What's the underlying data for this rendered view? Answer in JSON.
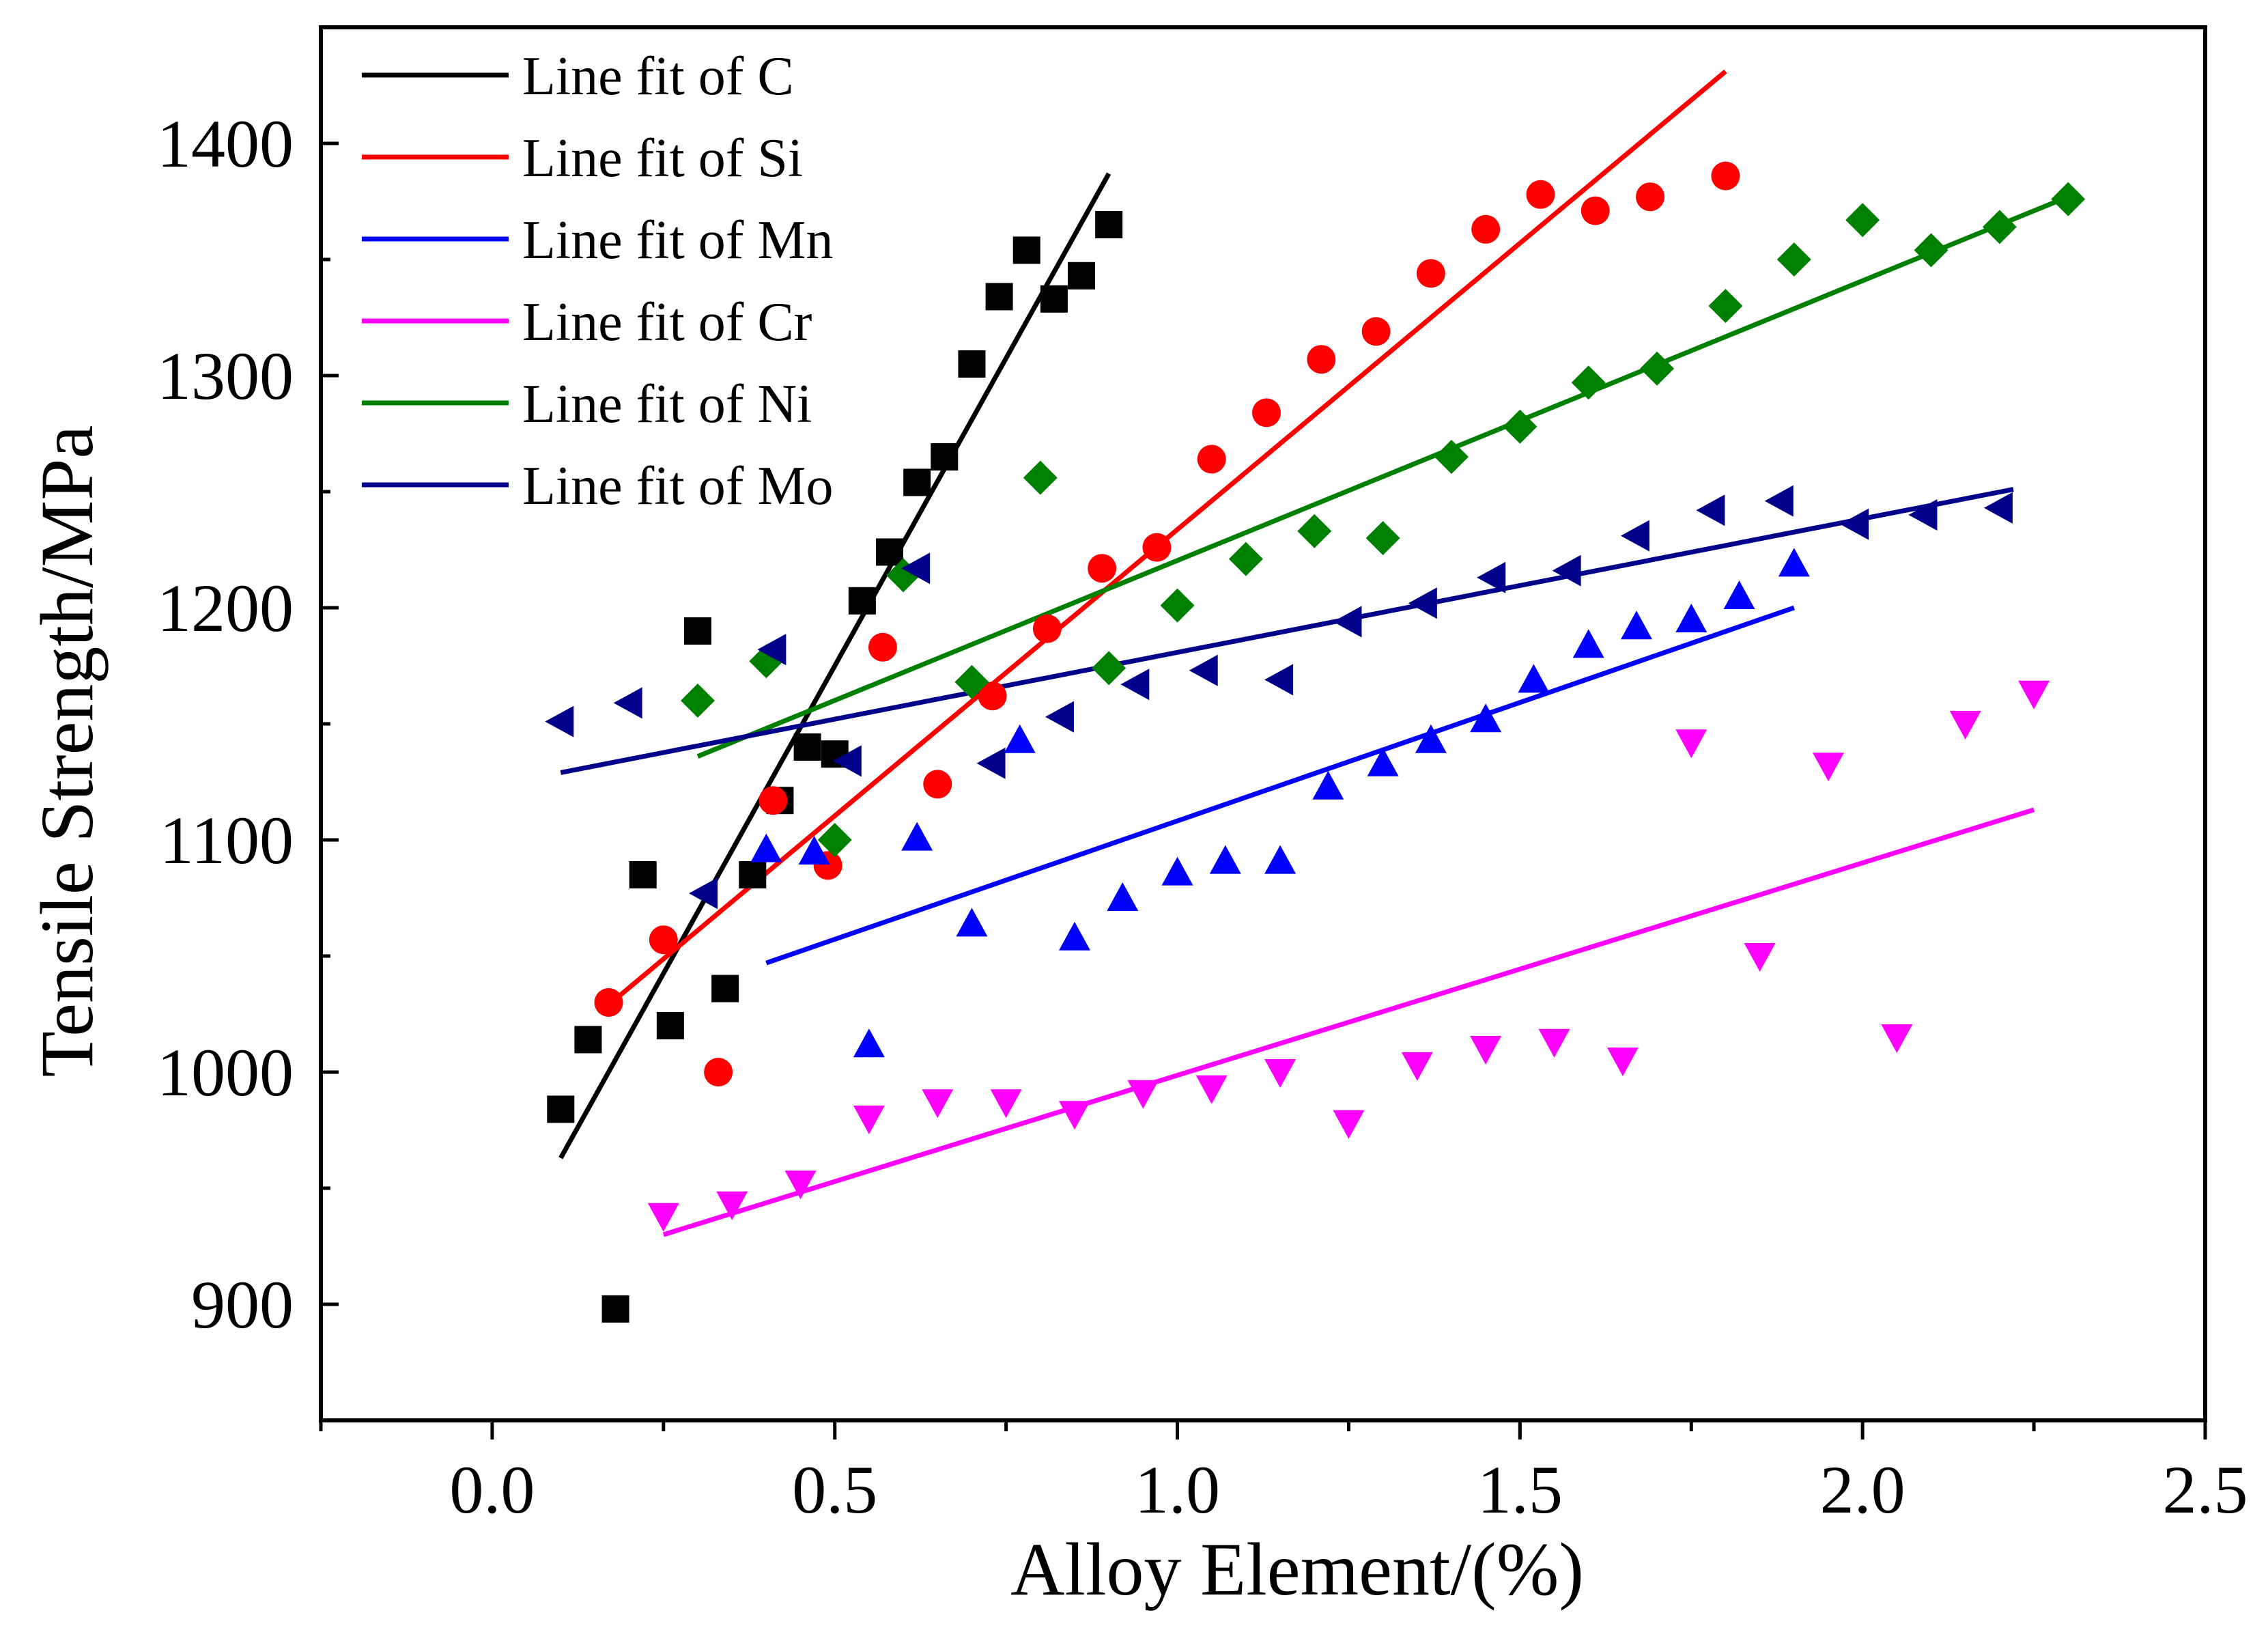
{
  "chart_data": {
    "type": "scatter",
    "title": "",
    "xlabel": "Alloy Element/(%)",
    "ylabel": "Tensile Strength/MPa",
    "xlim": [
      -0.25,
      2.5
    ],
    "ylim": [
      850,
      1450
    ],
    "xticks": [
      0.0,
      0.5,
      1.0,
      1.5,
      2.0,
      2.5
    ],
    "xtick_labels": [
      "0.0",
      "0.5",
      "1.0",
      "1.5",
      "2.0",
      "2.5"
    ],
    "yticks": [
      900,
      1000,
      1100,
      1200,
      1300,
      1400
    ],
    "ytick_labels": [
      "900",
      "1000",
      "1100",
      "1200",
      "1300",
      "1400"
    ],
    "grid": false,
    "legend_position": "top-left",
    "series": [
      {
        "name": "C",
        "legend": "Line fit of C",
        "color": "#000000",
        "marker": "square",
        "points": [
          [
            0.1,
            984
          ],
          [
            0.14,
            1014
          ],
          [
            0.18,
            898
          ],
          [
            0.22,
            1085
          ],
          [
            0.26,
            1020
          ],
          [
            0.3,
            1190
          ],
          [
            0.34,
            1036
          ],
          [
            0.38,
            1085
          ],
          [
            0.42,
            1117
          ],
          [
            0.46,
            1140
          ],
          [
            0.5,
            1137
          ],
          [
            0.54,
            1203
          ],
          [
            0.58,
            1224
          ],
          [
            0.62,
            1254
          ],
          [
            0.66,
            1265
          ],
          [
            0.7,
            1305
          ],
          [
            0.74,
            1334
          ],
          [
            0.78,
            1354
          ],
          [
            0.82,
            1333
          ],
          [
            0.86,
            1343
          ],
          [
            0.9,
            1365
          ]
        ],
        "fit": [
          [
            0.1,
            963
          ],
          [
            0.9,
            1387
          ]
        ]
      },
      {
        "name": "Si",
        "legend": "Line fit of Si",
        "color": "#ff0000",
        "marker": "circle",
        "points": [
          [
            0.17,
            1030
          ],
          [
            0.25,
            1057
          ],
          [
            0.33,
            1000
          ],
          [
            0.41,
            1117
          ],
          [
            0.49,
            1089
          ],
          [
            0.57,
            1183
          ],
          [
            0.65,
            1124
          ],
          [
            0.73,
            1162
          ],
          [
            0.81,
            1191
          ],
          [
            0.89,
            1217
          ],
          [
            0.97,
            1226
          ],
          [
            1.05,
            1264
          ],
          [
            1.13,
            1284
          ],
          [
            1.21,
            1307
          ],
          [
            1.29,
            1319
          ],
          [
            1.37,
            1344
          ],
          [
            1.45,
            1363
          ],
          [
            1.53,
            1378
          ],
          [
            1.61,
            1371
          ],
          [
            1.69,
            1377
          ],
          [
            1.8,
            1386
          ]
        ],
        "fit": [
          [
            0.17,
            1029
          ],
          [
            1.8,
            1431
          ]
        ]
      },
      {
        "name": "Mn",
        "legend": "Line fit of Mn",
        "color": "#0000ff",
        "marker": "triangle-up",
        "points": [
          [
            0.4,
            1096
          ],
          [
            0.47,
            1095
          ],
          [
            0.55,
            1012
          ],
          [
            0.62,
            1101
          ],
          [
            0.7,
            1064
          ],
          [
            0.77,
            1143
          ],
          [
            0.85,
            1058
          ],
          [
            0.92,
            1075
          ],
          [
            1.0,
            1086
          ],
          [
            1.07,
            1091
          ],
          [
            1.15,
            1091
          ],
          [
            1.22,
            1123
          ],
          [
            1.3,
            1133
          ],
          [
            1.37,
            1143
          ],
          [
            1.45,
            1152
          ],
          [
            1.52,
            1169
          ],
          [
            1.6,
            1184
          ],
          [
            1.67,
            1192
          ],
          [
            1.75,
            1195
          ],
          [
            1.82,
            1205
          ],
          [
            1.9,
            1219
          ]
        ],
        "fit": [
          [
            0.4,
            1047
          ],
          [
            1.9,
            1200
          ]
        ]
      },
      {
        "name": "Cr",
        "legend": "Line fit of Cr",
        "color": "#ff00ff",
        "marker": "triangle-down",
        "points": [
          [
            0.25,
            938
          ],
          [
            0.35,
            943
          ],
          [
            0.45,
            952
          ],
          [
            0.55,
            980
          ],
          [
            0.65,
            987
          ],
          [
            0.75,
            987
          ],
          [
            0.85,
            982
          ],
          [
            0.95,
            991
          ],
          [
            1.05,
            993
          ],
          [
            1.15,
            1000
          ],
          [
            1.25,
            978
          ],
          [
            1.35,
            1003
          ],
          [
            1.45,
            1010
          ],
          [
            1.55,
            1013
          ],
          [
            1.65,
            1005
          ],
          [
            1.75,
            1142
          ],
          [
            1.85,
            1050
          ],
          [
            1.95,
            1132
          ],
          [
            2.05,
            1015
          ],
          [
            2.15,
            1150
          ],
          [
            2.25,
            1163
          ]
        ],
        "fit": [
          [
            0.25,
            930
          ],
          [
            2.25,
            1113
          ]
        ]
      },
      {
        "name": "Ni",
        "legend": "Line fit of Ni",
        "color": "#008000",
        "marker": "diamond",
        "points": [
          [
            0.3,
            1160
          ],
          [
            0.4,
            1177
          ],
          [
            0.5,
            1100
          ],
          [
            0.6,
            1214
          ],
          [
            0.7,
            1168
          ],
          [
            0.8,
            1256
          ],
          [
            0.9,
            1174
          ],
          [
            1.0,
            1201
          ],
          [
            1.1,
            1221
          ],
          [
            1.2,
            1233
          ],
          [
            1.3,
            1230
          ],
          [
            1.4,
            1265
          ],
          [
            1.5,
            1278
          ],
          [
            1.6,
            1297
          ],
          [
            1.7,
            1303
          ],
          [
            1.8,
            1330
          ],
          [
            1.9,
            1350
          ],
          [
            2.0,
            1367
          ],
          [
            2.1,
            1354
          ],
          [
            2.2,
            1364
          ],
          [
            2.3,
            1376
          ]
        ],
        "fit": [
          [
            0.3,
            1136
          ],
          [
            2.3,
            1377
          ]
        ]
      },
      {
        "name": "Mo",
        "legend": "Line fit of Mo",
        "color": "#00008b",
        "marker": "triangle-left",
        "points": [
          [
            0.1,
            1151
          ],
          [
            0.2,
            1159
          ],
          [
            0.31,
            1077
          ],
          [
            0.41,
            1182
          ],
          [
            0.52,
            1134
          ],
          [
            0.62,
            1217
          ],
          [
            0.73,
            1133
          ],
          [
            0.83,
            1153
          ],
          [
            0.94,
            1167
          ],
          [
            1.04,
            1173
          ],
          [
            1.15,
            1169
          ],
          [
            1.25,
            1194
          ],
          [
            1.36,
            1202
          ],
          [
            1.46,
            1213
          ],
          [
            1.57,
            1216
          ],
          [
            1.67,
            1231
          ],
          [
            1.78,
            1242
          ],
          [
            1.88,
            1246
          ],
          [
            1.99,
            1236
          ],
          [
            2.09,
            1240
          ],
          [
            2.2,
            1243
          ]
        ],
        "fit": [
          [
            0.1,
            1129
          ],
          [
            2.22,
            1251
          ]
        ]
      }
    ]
  }
}
